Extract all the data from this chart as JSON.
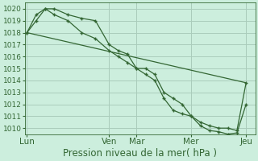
{
  "bg_color": "#cceedd",
  "grid_color": "#aaccbb",
  "line_color": "#336633",
  "xlabel": "Pression niveau de la mer( hPa )",
  "ylim": [
    1009.5,
    1020.5
  ],
  "yticks": [
    1010,
    1011,
    1012,
    1013,
    1014,
    1015,
    1016,
    1017,
    1018,
    1019,
    1020
  ],
  "xtick_labels": [
    "Lun",
    "Ven",
    "Mar",
    "Mer",
    "Jeu"
  ],
  "xtick_positions": [
    0,
    36,
    48,
    72,
    96
  ],
  "xmin": -1,
  "xmax": 100,
  "line1_x": [
    0,
    4,
    8,
    12,
    18,
    24,
    30,
    36,
    40,
    44,
    48,
    52,
    56,
    60,
    64,
    68,
    72,
    76,
    80,
    84,
    88,
    92,
    96
  ],
  "line1_y": [
    1018.0,
    1019.0,
    1020.0,
    1020.0,
    1019.5,
    1019.2,
    1019.0,
    1017.0,
    1016.5,
    1016.2,
    1015.0,
    1015.0,
    1014.5,
    1013.0,
    1012.5,
    1012.0,
    1011.0,
    1010.5,
    1010.2,
    1010.0,
    1010.0,
    1009.8,
    1013.8
  ],
  "line2_x": [
    0,
    4,
    8,
    12,
    18,
    24,
    30,
    36,
    40,
    44,
    48,
    52,
    56,
    60,
    64,
    68,
    72,
    76,
    80,
    84,
    88,
    92,
    96
  ],
  "line2_y": [
    1018.0,
    1019.5,
    1020.0,
    1019.5,
    1019.0,
    1018.0,
    1017.5,
    1016.5,
    1016.0,
    1015.5,
    1015.0,
    1014.5,
    1014.0,
    1012.5,
    1011.5,
    1011.2,
    1011.0,
    1010.2,
    1009.8,
    1009.7,
    1009.5,
    1009.6,
    1012.0
  ],
  "line3_x": [
    0,
    96
  ],
  "line3_y": [
    1018.0,
    1013.8
  ],
  "xlabel_fontsize": 8.5,
  "ytick_fontsize": 6.5,
  "xtick_fontsize": 7.5
}
